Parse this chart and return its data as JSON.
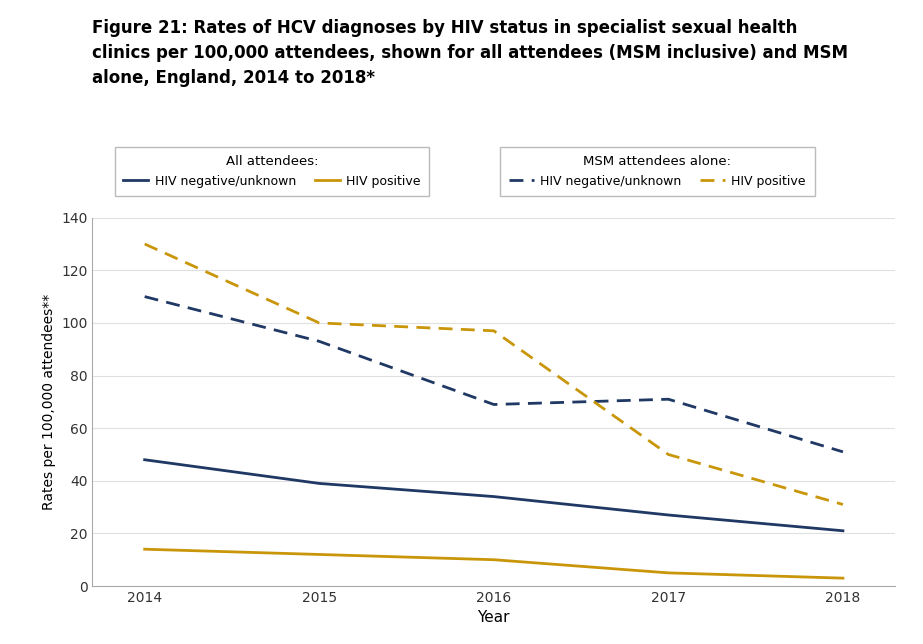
{
  "title_line1": "Figure 21: Rates of HCV diagnoses by HIV status in specialist sexual health",
  "title_line2": "clinics per 100,000 attendees, shown for all attendees (MSM inclusive) and MSM",
  "title_line3": "alone, England, 2014 to 2018*",
  "xlabel": "Year",
  "ylabel": "Rates per 100,000 attendees**",
  "years": [
    2014,
    2015,
    2016,
    2017,
    2018
  ],
  "all_hiv_neg": [
    48,
    39,
    34,
    27,
    21
  ],
  "all_hiv_pos": [
    14,
    12,
    10,
    5,
    3
  ],
  "msm_hiv_neg": [
    110,
    93,
    69,
    71,
    51
  ],
  "msm_hiv_pos": [
    130,
    100,
    97,
    50,
    31
  ],
  "color_navy": "#1f3864",
  "color_gold": "#c9960a",
  "ylim": [
    0,
    140
  ],
  "yticks": [
    0,
    20,
    40,
    60,
    80,
    100,
    120,
    140
  ],
  "xticks": [
    2014,
    2015,
    2016,
    2017,
    2018
  ],
  "background_color": "#ffffff",
  "legend_box1_title": "All attendees:",
  "legend_box2_title": "MSM attendees alone:",
  "legend_label_neg": "HIV negative/unknown",
  "legend_label_pos": "HIV positive"
}
